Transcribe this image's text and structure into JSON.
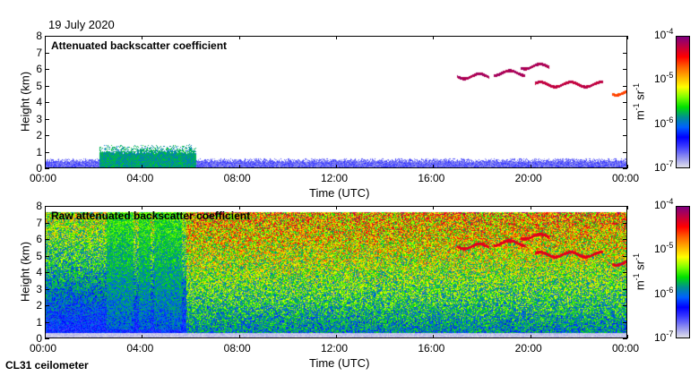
{
  "date": "19 July 2020",
  "footer": "CL31 ceilometer",
  "colorbar": {
    "label_base": "m",
    "label_exp1": "-1",
    "label_mid": " sr",
    "label_exp2": "-1",
    "ticks": [
      {
        "base": "10",
        "exp": "-4"
      },
      {
        "base": "10",
        "exp": "-5"
      },
      {
        "base": "10",
        "exp": "-6"
      },
      {
        "base": "10",
        "exp": "-7"
      }
    ],
    "colors": [
      "#800080",
      "#c00040",
      "#ff0000",
      "#ff6000",
      "#ffb000",
      "#ffff00",
      "#80ff00",
      "#00e000",
      "#009090",
      "#0060ff",
      "#0000ff",
      "#4040ff",
      "#9090f0",
      "#e0e0e8"
    ]
  },
  "chart_data": [
    {
      "type": "heatmap",
      "title": "Attenuated backscatter coefficient",
      "xlabel": "Time (UTC)",
      "ylabel": "Height (km)",
      "xticks": [
        "00:00",
        "04:00",
        "08:00",
        "12:00",
        "16:00",
        "20:00",
        "00:00"
      ],
      "yticks": [
        "0",
        "1",
        "2",
        "3",
        "4",
        "5",
        "6",
        "7",
        "8"
      ],
      "xlim_hours": [
        0,
        24
      ],
      "ylim_km": [
        0,
        8
      ],
      "color_scale": "log",
      "clim": [
        1e-07,
        0.0001
      ],
      "features": [
        {
          "name": "boundary layer",
          "start_h": 0,
          "end_h": 24,
          "top_km": 0.5,
          "level": 1.5e-07
        },
        {
          "name": "aerosol plume",
          "start_h": 2.2,
          "end_h": 6.2,
          "top_km": 1.2,
          "level": 1e-06
        },
        {
          "name": "cloud",
          "start_h": 17,
          "end_h": 18.3,
          "height_km": 5.6,
          "level": 6e-05
        },
        {
          "name": "cloud",
          "start_h": 18.5,
          "end_h": 19.8,
          "height_km": 5.8,
          "level": 6e-05
        },
        {
          "name": "cloud",
          "start_h": 19.6,
          "end_h": 20.8,
          "height_km": 6.2,
          "level": 6e-05
        },
        {
          "name": "cloud",
          "start_h": 20.2,
          "end_h": 23,
          "height_km": 5.1,
          "level": 5e-05
        },
        {
          "name": "cloud",
          "start_h": 23.4,
          "end_h": 24,
          "height_km": 4.6,
          "level": 2e-05
        }
      ]
    },
    {
      "type": "heatmap",
      "title": "Raw attenuated backscatter coefficient",
      "xlabel": "Time (UTC)",
      "ylabel": "Height (km)",
      "xticks": [
        "00:00",
        "04:00",
        "08:00",
        "12:00",
        "16:00",
        "20:00",
        "00:00"
      ],
      "yticks": [
        "0",
        "1",
        "2",
        "3",
        "4",
        "5",
        "6",
        "7",
        "8"
      ],
      "xlim_hours": [
        0,
        24
      ],
      "ylim_km": [
        0,
        8
      ],
      "color_scale": "log",
      "clim": [
        1e-07,
        0.0001
      ],
      "noise": "increasing with height and after 06:00"
    }
  ]
}
